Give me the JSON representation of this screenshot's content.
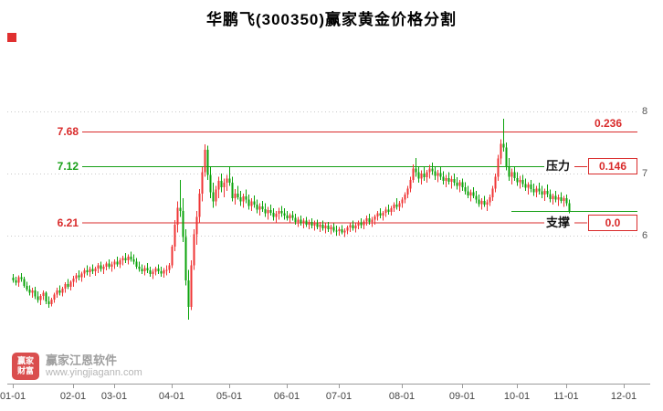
{
  "title": "华鹏飞(300350)赢家黄金价格分割",
  "corner_marker_color": "#e03030",
  "watermark": {
    "logo_line1": "赢家",
    "logo_line2": "财富",
    "brand": "赢家江恩软件",
    "url": "www.yingjiagann.com"
  },
  "chart_data": {
    "type": "candlestick",
    "title": "华鹏飞(300350)赢家黄金价格分割",
    "stock_name": "华鹏飞",
    "symbol": "300350",
    "ylim": [
      3.6,
      8.8
    ],
    "grid": "dotted-horizontal",
    "grid_prices": [
      8,
      7,
      6
    ],
    "up_color": "#ef3434",
    "down_color": "#0aa30a",
    "y_ticks": [
      {
        "label": "8",
        "price": 8
      },
      {
        "label": "7",
        "price": 7
      },
      {
        "label": "6",
        "price": 6
      }
    ],
    "x_ticks": [
      {
        "label": "01-01",
        "day": 0
      },
      {
        "label": "02-01",
        "day": 22
      },
      {
        "label": "03-01",
        "day": 37
      },
      {
        "label": "04-01",
        "day": 58
      },
      {
        "label": "05-01",
        "day": 79
      },
      {
        "label": "06-01",
        "day": 100
      },
      {
        "label": "07-01",
        "day": 119
      },
      {
        "label": "08-01",
        "day": 142
      },
      {
        "label": "09-01",
        "day": 164
      },
      {
        "label": "10-01",
        "day": 184
      },
      {
        "label": "11-01",
        "day": 202
      },
      {
        "label": "12-01",
        "day": 223
      }
    ],
    "golden_levels": {
      "upper": {
        "price": 7.68,
        "label": "7.68",
        "ratio_label": "0.236",
        "color": "#d92b2b"
      },
      "resistance": {
        "price": 7.12,
        "label": "7.12",
        "name": "压力",
        "value": "0.146",
        "color": "#18a018"
      },
      "support": {
        "price": 6.21,
        "label": "6.21",
        "name": "支撑",
        "value": "0.0",
        "color": "#d92b2b"
      },
      "current": {
        "price": 6.4,
        "color": "#18a018"
      }
    },
    "candles": [
      [
        5.32,
        5.38,
        5.24,
        5.28
      ],
      [
        5.28,
        5.34,
        5.2,
        5.24
      ],
      [
        5.24,
        5.36,
        5.18,
        5.33
      ],
      [
        5.33,
        5.4,
        5.26,
        5.3
      ],
      [
        5.3,
        5.34,
        5.16,
        5.19
      ],
      [
        5.19,
        5.26,
        5.1,
        5.13
      ],
      [
        5.13,
        5.2,
        5.04,
        5.08
      ],
      [
        5.08,
        5.16,
        5.0,
        5.12
      ],
      [
        5.12,
        5.18,
        4.98,
        5.02
      ],
      [
        5.02,
        5.1,
        4.92,
        4.96
      ],
      [
        4.96,
        5.06,
        4.88,
        5.03
      ],
      [
        5.03,
        5.12,
        4.96,
        5.08
      ],
      [
        5.08,
        5.1,
        4.9,
        4.94
      ],
      [
        4.94,
        5.02,
        4.84,
        4.9
      ],
      [
        4.9,
        5.0,
        4.86,
        4.97
      ],
      [
        4.97,
        5.08,
        4.92,
        5.05
      ],
      [
        5.05,
        5.16,
        5.0,
        5.12
      ],
      [
        5.12,
        5.2,
        5.04,
        5.08
      ],
      [
        5.08,
        5.18,
        5.02,
        5.15
      ],
      [
        5.15,
        5.25,
        5.08,
        5.22
      ],
      [
        5.22,
        5.3,
        5.14,
        5.18
      ],
      [
        5.18,
        5.28,
        5.12,
        5.26
      ],
      [
        5.26,
        5.35,
        5.18,
        5.31
      ],
      [
        5.31,
        5.4,
        5.24,
        5.36
      ],
      [
        5.36,
        5.44,
        5.28,
        5.33
      ],
      [
        5.33,
        5.42,
        5.26,
        5.39
      ],
      [
        5.39,
        5.48,
        5.32,
        5.44
      ],
      [
        5.44,
        5.52,
        5.36,
        5.41
      ],
      [
        5.41,
        5.5,
        5.34,
        5.46
      ],
      [
        5.46,
        5.54,
        5.38,
        5.43
      ],
      [
        5.43,
        5.5,
        5.35,
        5.47
      ],
      [
        5.47,
        5.56,
        5.4,
        5.52
      ],
      [
        5.52,
        5.58,
        5.42,
        5.46
      ],
      [
        5.46,
        5.54,
        5.38,
        5.5
      ],
      [
        5.5,
        5.58,
        5.44,
        5.55
      ],
      [
        5.55,
        5.62,
        5.46,
        5.5
      ],
      [
        5.5,
        5.58,
        5.42,
        5.54
      ],
      [
        5.54,
        5.62,
        5.46,
        5.58
      ],
      [
        5.58,
        5.66,
        5.5,
        5.54
      ],
      [
        5.54,
        5.64,
        5.48,
        5.6
      ],
      [
        5.6,
        5.68,
        5.52,
        5.64
      ],
      [
        5.64,
        5.72,
        5.56,
        5.6
      ],
      [
        5.6,
        5.7,
        5.54,
        5.66
      ],
      [
        5.66,
        5.74,
        5.58,
        5.62
      ],
      [
        5.62,
        5.7,
        5.54,
        5.58
      ],
      [
        5.58,
        5.64,
        5.46,
        5.5
      ],
      [
        5.5,
        5.58,
        5.42,
        5.46
      ],
      [
        5.46,
        5.54,
        5.38,
        5.43
      ],
      [
        5.43,
        5.52,
        5.36,
        5.48
      ],
      [
        5.48,
        5.56,
        5.4,
        5.44
      ],
      [
        5.44,
        5.5,
        5.34,
        5.38
      ],
      [
        5.38,
        5.46,
        5.3,
        5.42
      ],
      [
        5.42,
        5.5,
        5.36,
        5.47
      ],
      [
        5.47,
        5.54,
        5.38,
        5.43
      ],
      [
        5.43,
        5.5,
        5.34,
        5.39
      ],
      [
        5.39,
        5.48,
        5.32,
        5.44
      ],
      [
        5.44,
        5.52,
        5.36,
        5.45
      ],
      [
        5.45,
        5.56,
        5.4,
        5.52
      ],
      [
        5.52,
        5.85,
        5.48,
        5.82
      ],
      [
        5.82,
        6.25,
        5.75,
        6.18
      ],
      [
        6.18,
        6.55,
        6.05,
        6.45
      ],
      [
        6.45,
        6.9,
        6.3,
        6.4
      ],
      [
        6.4,
        6.6,
        5.9,
        5.98
      ],
      [
        5.98,
        6.1,
        5.2,
        5.28
      ],
      [
        5.28,
        5.45,
        4.65,
        4.85
      ],
      [
        4.85,
        5.6,
        4.8,
        5.52
      ],
      [
        5.52,
        6.1,
        5.45,
        6.02
      ],
      [
        6.02,
        6.4,
        5.85,
        6.3
      ],
      [
        6.3,
        6.75,
        6.2,
        6.68
      ],
      [
        6.68,
        7.1,
        6.55,
        7.02
      ],
      [
        7.02,
        7.47,
        6.95,
        7.38
      ],
      [
        7.38,
        7.45,
        6.9,
        6.98
      ],
      [
        6.98,
        7.1,
        6.6,
        6.7
      ],
      [
        6.7,
        6.85,
        6.45,
        6.55
      ],
      [
        6.55,
        6.8,
        6.48,
        6.74
      ],
      [
        6.74,
        6.95,
        6.6,
        6.88
      ],
      [
        6.88,
        7.0,
        6.7,
        6.78
      ],
      [
        6.78,
        6.92,
        6.62,
        6.85
      ],
      [
        6.85,
        6.98,
        6.72,
        6.92
      ],
      [
        6.92,
        7.12,
        6.8,
        6.85
      ],
      [
        6.85,
        6.95,
        6.55,
        6.6
      ],
      [
        6.6,
        6.75,
        6.5,
        6.68
      ],
      [
        6.68,
        6.8,
        6.58,
        6.62
      ],
      [
        6.62,
        6.72,
        6.48,
        6.55
      ],
      [
        6.55,
        6.68,
        6.45,
        6.63
      ],
      [
        6.63,
        6.74,
        6.52,
        6.58
      ],
      [
        6.58,
        6.66,
        6.42,
        6.48
      ],
      [
        6.48,
        6.6,
        6.4,
        6.55
      ],
      [
        6.55,
        6.65,
        6.45,
        6.5
      ],
      [
        6.5,
        6.58,
        6.36,
        6.42
      ],
      [
        6.42,
        6.52,
        6.32,
        6.47
      ],
      [
        6.47,
        6.56,
        6.38,
        6.43
      ],
      [
        6.43,
        6.52,
        6.3,
        6.36
      ],
      [
        6.36,
        6.46,
        6.26,
        6.41
      ],
      [
        6.41,
        6.5,
        6.32,
        6.37
      ],
      [
        6.37,
        6.44,
        6.24,
        6.3
      ],
      [
        6.3,
        6.4,
        6.2,
        6.35
      ],
      [
        6.35,
        6.45,
        6.26,
        6.4
      ],
      [
        6.4,
        6.48,
        6.3,
        6.36
      ],
      [
        6.36,
        6.44,
        6.26,
        6.32
      ],
      [
        6.32,
        6.4,
        6.24,
        6.28
      ],
      [
        6.28,
        6.36,
        6.2,
        6.33
      ],
      [
        6.33,
        6.4,
        6.24,
        6.29
      ],
      [
        6.29,
        6.35,
        6.18,
        6.22
      ],
      [
        6.22,
        6.3,
        6.14,
        6.26
      ],
      [
        6.26,
        6.32,
        6.16,
        6.2
      ],
      [
        6.2,
        6.28,
        6.12,
        6.24
      ],
      [
        6.24,
        6.3,
        6.14,
        6.18
      ],
      [
        6.18,
        6.26,
        6.1,
        6.22
      ],
      [
        6.22,
        6.28,
        6.12,
        6.16
      ],
      [
        6.16,
        6.24,
        6.08,
        6.2
      ],
      [
        6.2,
        6.26,
        6.1,
        6.14
      ],
      [
        6.14,
        6.22,
        6.06,
        6.18
      ],
      [
        6.18,
        6.24,
        6.08,
        6.12
      ],
      [
        6.12,
        6.2,
        6.04,
        6.16
      ],
      [
        6.16,
        6.22,
        6.06,
        6.1
      ],
      [
        6.1,
        6.18,
        6.02,
        6.14
      ],
      [
        6.14,
        6.2,
        6.05,
        6.08
      ],
      [
        6.08,
        6.16,
        6.0,
        6.07
      ],
      [
        6.07,
        6.14,
        6.0,
        6.1
      ],
      [
        6.1,
        6.17,
        6.02,
        6.05
      ],
      [
        6.05,
        6.12,
        5.98,
        6.08
      ],
      [
        6.08,
        6.16,
        6.02,
        6.13
      ],
      [
        6.13,
        6.2,
        6.06,
        6.17
      ],
      [
        6.17,
        6.24,
        6.08,
        6.12
      ],
      [
        6.12,
        6.2,
        6.05,
        6.16
      ],
      [
        6.16,
        6.24,
        6.1,
        6.21
      ],
      [
        6.21,
        6.28,
        6.12,
        6.17
      ],
      [
        6.17,
        6.26,
        6.1,
        6.23
      ],
      [
        6.23,
        6.32,
        6.16,
        6.28
      ],
      [
        6.28,
        6.35,
        6.18,
        6.22
      ],
      [
        6.22,
        6.3,
        6.14,
        6.26
      ],
      [
        6.26,
        6.34,
        6.18,
        6.31
      ],
      [
        6.31,
        6.4,
        6.24,
        6.36
      ],
      [
        6.36,
        6.44,
        6.28,
        6.32
      ],
      [
        6.32,
        6.4,
        6.24,
        6.37
      ],
      [
        6.37,
        6.46,
        6.3,
        6.42
      ],
      [
        6.42,
        6.5,
        6.34,
        6.38
      ],
      [
        6.38,
        6.48,
        6.32,
        6.44
      ],
      [
        6.44,
        6.54,
        6.38,
        6.5
      ],
      [
        6.5,
        6.6,
        6.42,
        6.46
      ],
      [
        6.46,
        6.56,
        6.4,
        6.52
      ],
      [
        6.52,
        6.62,
        6.45,
        6.58
      ],
      [
        6.58,
        6.7,
        6.52,
        6.66
      ],
      [
        6.66,
        6.8,
        6.6,
        6.76
      ],
      [
        6.76,
        6.95,
        6.7,
        6.9
      ],
      [
        6.9,
        7.15,
        6.85,
        7.08
      ],
      [
        7.08,
        7.25,
        6.95,
        7.02
      ],
      [
        7.02,
        7.12,
        6.85,
        6.92
      ],
      [
        6.92,
        7.05,
        6.82,
        7.0
      ],
      [
        7.0,
        7.1,
        6.88,
        6.94
      ],
      [
        6.94,
        7.06,
        6.85,
        7.02
      ],
      [
        7.02,
        7.14,
        6.92,
        7.08
      ],
      [
        7.08,
        7.18,
        6.98,
        7.04
      ],
      [
        7.04,
        7.12,
        6.9,
        6.96
      ],
      [
        6.96,
        7.06,
        6.86,
        7.01
      ],
      [
        7.01,
        7.1,
        6.9,
        6.95
      ],
      [
        6.95,
        7.04,
        6.82,
        6.88
      ],
      [
        6.88,
        6.98,
        6.78,
        6.93
      ],
      [
        6.93,
        7.02,
        6.82,
        6.87
      ],
      [
        6.87,
        6.96,
        6.76,
        6.91
      ],
      [
        6.91,
        7.0,
        6.8,
        6.85
      ],
      [
        6.85,
        6.94,
        6.74,
        6.8
      ],
      [
        6.8,
        6.9,
        6.7,
        6.86
      ],
      [
        6.86,
        6.92,
        6.72,
        6.78
      ],
      [
        6.78,
        6.86,
        6.66,
        6.71
      ],
      [
        6.71,
        6.8,
        6.6,
        6.65
      ],
      [
        6.65,
        6.74,
        6.55,
        6.7
      ],
      [
        6.7,
        6.78,
        6.6,
        6.64
      ],
      [
        6.64,
        6.72,
        6.52,
        6.58
      ],
      [
        6.58,
        6.66,
        6.46,
        6.51
      ],
      [
        6.51,
        6.6,
        6.42,
        6.56
      ],
      [
        6.56,
        6.64,
        6.46,
        6.5
      ],
      [
        6.5,
        6.58,
        6.4,
        6.54
      ],
      [
        6.54,
        6.66,
        6.48,
        6.62
      ],
      [
        6.62,
        6.8,
        6.56,
        6.76
      ],
      [
        6.76,
        7.0,
        6.7,
        6.95
      ],
      [
        6.95,
        7.3,
        6.88,
        7.24
      ],
      [
        7.24,
        7.55,
        7.15,
        7.48
      ],
      [
        7.48,
        7.88,
        7.35,
        7.42
      ],
      [
        7.42,
        7.5,
        7.05,
        7.12
      ],
      [
        7.12,
        7.25,
        6.88,
        6.95
      ],
      [
        6.95,
        7.08,
        6.82,
        7.02
      ],
      [
        7.02,
        7.12,
        6.88,
        6.93
      ],
      [
        6.93,
        7.02,
        6.8,
        6.86
      ],
      [
        6.86,
        6.96,
        6.76,
        6.9
      ],
      [
        6.9,
        6.98,
        6.78,
        6.83
      ],
      [
        6.83,
        6.92,
        6.72,
        6.77
      ],
      [
        6.77,
        6.86,
        6.66,
        6.82
      ],
      [
        6.82,
        6.9,
        6.7,
        6.75
      ],
      [
        6.75,
        6.84,
        6.64,
        6.7
      ],
      [
        6.7,
        6.8,
        6.62,
        6.76
      ],
      [
        6.76,
        6.85,
        6.66,
        6.71
      ],
      [
        6.71,
        6.8,
        6.6,
        6.66
      ],
      [
        6.66,
        6.76,
        6.56,
        6.72
      ],
      [
        6.72,
        6.82,
        6.62,
        6.67
      ],
      [
        6.67,
        6.74,
        6.54,
        6.59
      ],
      [
        6.59,
        6.68,
        6.5,
        6.64
      ],
      [
        6.64,
        6.72,
        6.54,
        6.58
      ],
      [
        6.58,
        6.66,
        6.48,
        6.62
      ],
      [
        6.62,
        6.7,
        6.52,
        6.56
      ],
      [
        6.56,
        6.64,
        6.46,
        6.6
      ],
      [
        6.6,
        6.66,
        6.48,
        6.52
      ],
      [
        6.52,
        6.58,
        6.36,
        6.4
      ]
    ]
  }
}
